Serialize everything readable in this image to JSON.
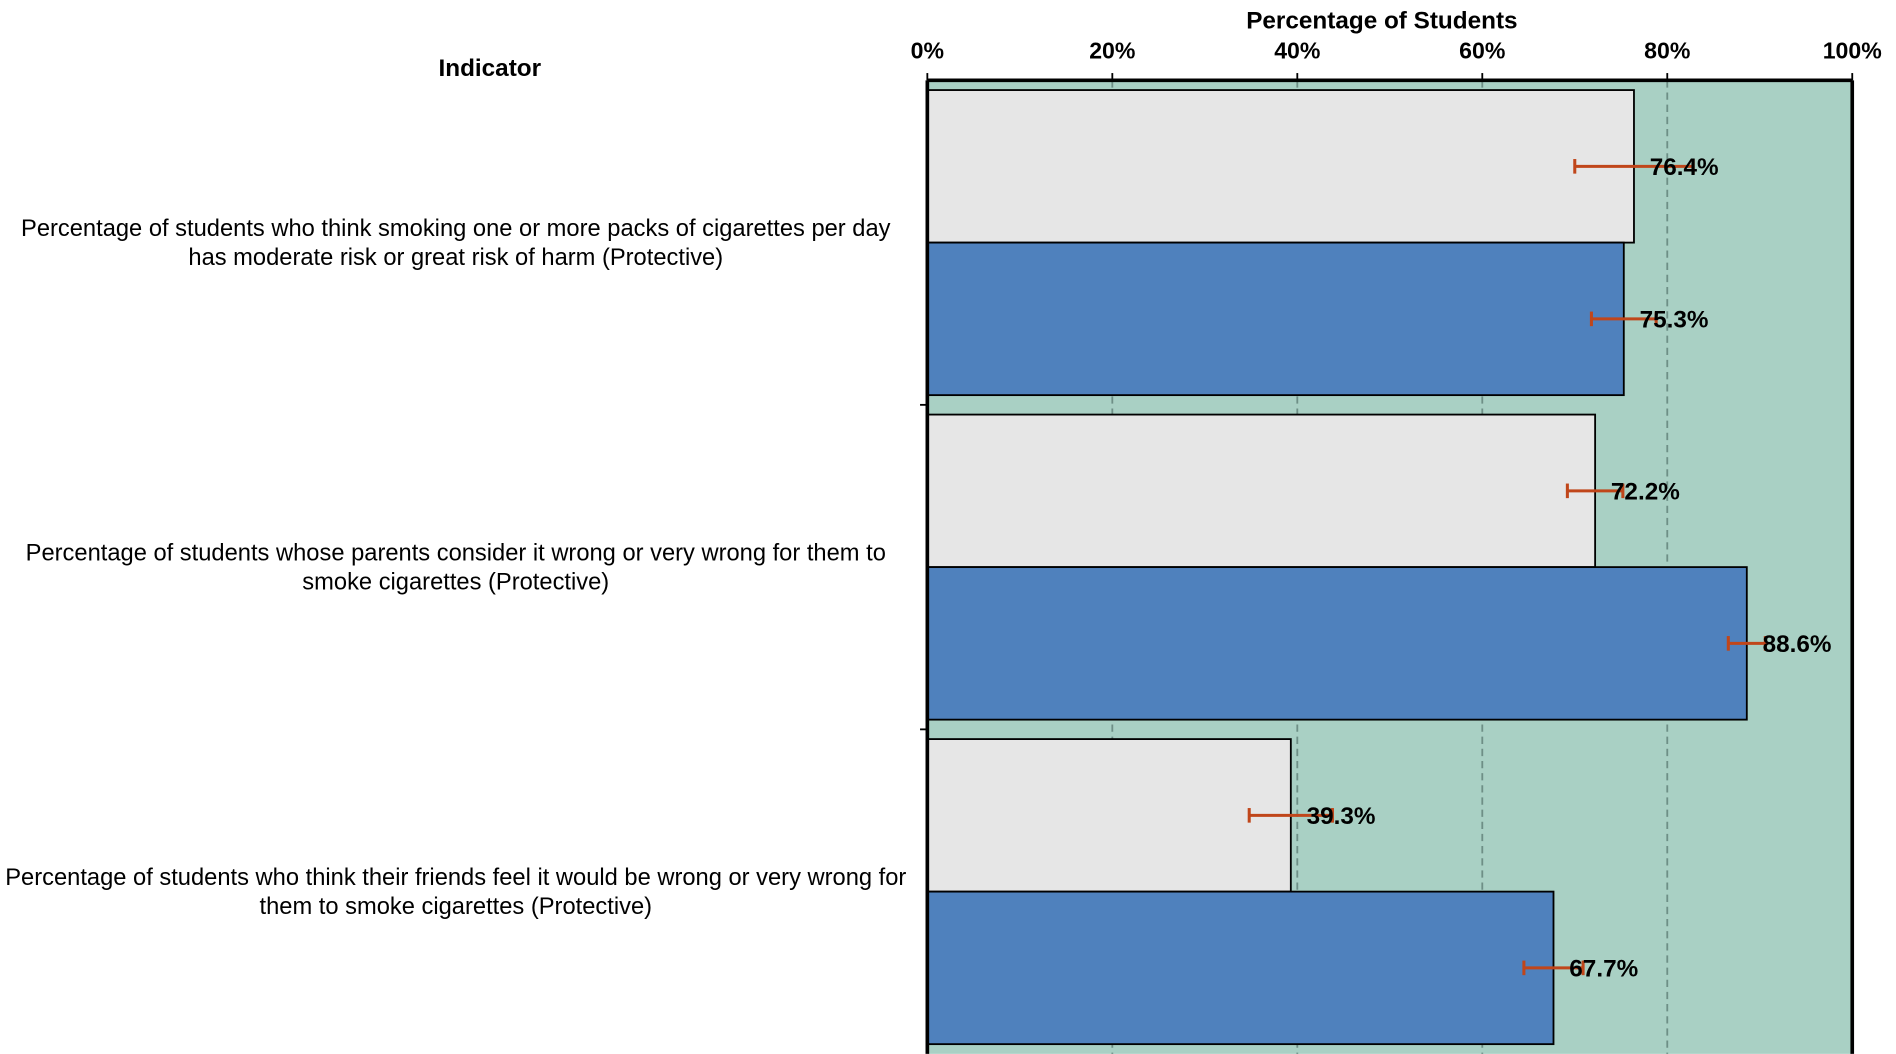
{
  "chart_data": {
    "type": "bar",
    "orientation": "horizontal",
    "x_axis_label": "Percentage of Students",
    "category_header": "Indicator",
    "categories": [
      "Percentage of students who think smoking one or more packs of cigarettes per day has moderate risk or great risk of harm (Protective)",
      "Percentage of students whose parents consider it wrong or very wrong for them to smoke cigarettes (Protective)",
      "Percentage of students who think their friends feel it would be wrong or very wrong for them to smoke cigarettes (Protective)"
    ],
    "series": [
      {
        "color": "#e6e6e6",
        "values": [
          76.4,
          72.2,
          39.3
        ],
        "value_labels": [
          "76.4%",
          "72.2%",
          "39.3%"
        ],
        "errors": [
          6.4,
          3.0,
          4.5
        ]
      },
      {
        "color": "#4f81bd",
        "values": [
          75.3,
          88.6,
          67.7
        ],
        "value_labels": [
          "75.3%",
          "88.6%",
          "67.7%"
        ],
        "errors": [
          3.5,
          2.0,
          3.2
        ]
      }
    ],
    "error_color": "#c0461a",
    "plot_background": "#a9d0c4",
    "xlim": [
      0,
      100
    ],
    "xticks": [
      {
        "value": 0,
        "label": "0%"
      },
      {
        "value": 20,
        "label": "20%"
      },
      {
        "value": 40,
        "label": "40%"
      },
      {
        "value": 60,
        "label": "60%"
      },
      {
        "value": 80,
        "label": "80%"
      },
      {
        "value": 100,
        "label": "100%"
      }
    ],
    "grid": true
  }
}
